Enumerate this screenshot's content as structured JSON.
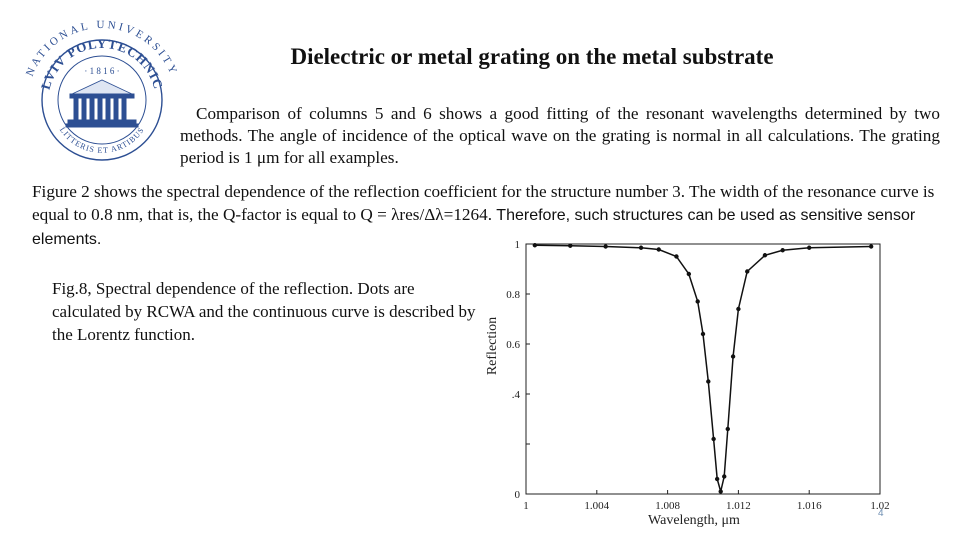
{
  "logo": {
    "ring_text": "NATIONAL UNIVERSITY",
    "name_text": "LVIV POLYTECHNIC",
    "year_text": "· 1 8 1 6 ·",
    "motto_text": "LITTERIS ET ARTIBUS",
    "color": "#2d4f93"
  },
  "slide": {
    "title": "Dielectric or metal grating on the metal substrate",
    "paragraph1": "Comparison of columns 5 and 6 shows a good fitting of the resonant wavelengths determined by two methods. The angle of incidence of the optical wave on the grating is normal in all calculations. The grating period is 1 μm for all examples.",
    "paragraph2_serif": "Figure 2 shows the spectral dependence of the reflection coefficient for the structure number 3. The width of the resonance curve is equal to 0.8 nm, that is, the Q-factor is equal to Q = λres/Δλ=1264.",
    "paragraph2_sans": "Therefore, such structures can be used as sensitive sensor elements.",
    "caption": "Fig.8, Spectral dependence of the reflection. Dots are calculated by RCWA and the continuous curve is described by the Lorentz function.",
    "page_number": "4"
  },
  "chart_data": {
    "type": "line",
    "title": "",
    "xlabel": "Wavelength, μm",
    "ylabel": "Reflection",
    "xlim": [
      1.0,
      1.02
    ],
    "ylim": [
      0,
      1
    ],
    "x_ticks": [
      1.0,
      1.004,
      1.008,
      1.012,
      1.016,
      1.02
    ],
    "x_tick_labels": [
      "1",
      "1.004",
      "1.008",
      "1.012",
      "1.016",
      "1.02"
    ],
    "y_ticks": [
      0,
      0.2,
      0.4,
      0.6,
      0.8,
      1.0
    ],
    "y_tick_labels": [
      "0",
      "",
      ".4",
      "0.6",
      "0.8",
      "1"
    ],
    "grid": false,
    "legend": "none",
    "line_color": "#111111",
    "series": [
      {
        "marker": "dot",
        "x": [
          1.0005,
          1.0025,
          1.0045,
          1.0065,
          1.0075,
          1.0085,
          1.0092,
          1.0097,
          1.01,
          1.0103,
          1.0106,
          1.0108,
          1.011,
          1.0112,
          1.0114,
          1.0117,
          1.012,
          1.0125,
          1.0135,
          1.0145,
          1.016,
          1.0195
        ],
        "y": [
          0.995,
          0.993,
          0.99,
          0.985,
          0.978,
          0.95,
          0.88,
          0.77,
          0.64,
          0.45,
          0.22,
          0.06,
          0.01,
          0.07,
          0.26,
          0.55,
          0.74,
          0.89,
          0.955,
          0.975,
          0.985,
          0.99
        ]
      }
    ]
  }
}
